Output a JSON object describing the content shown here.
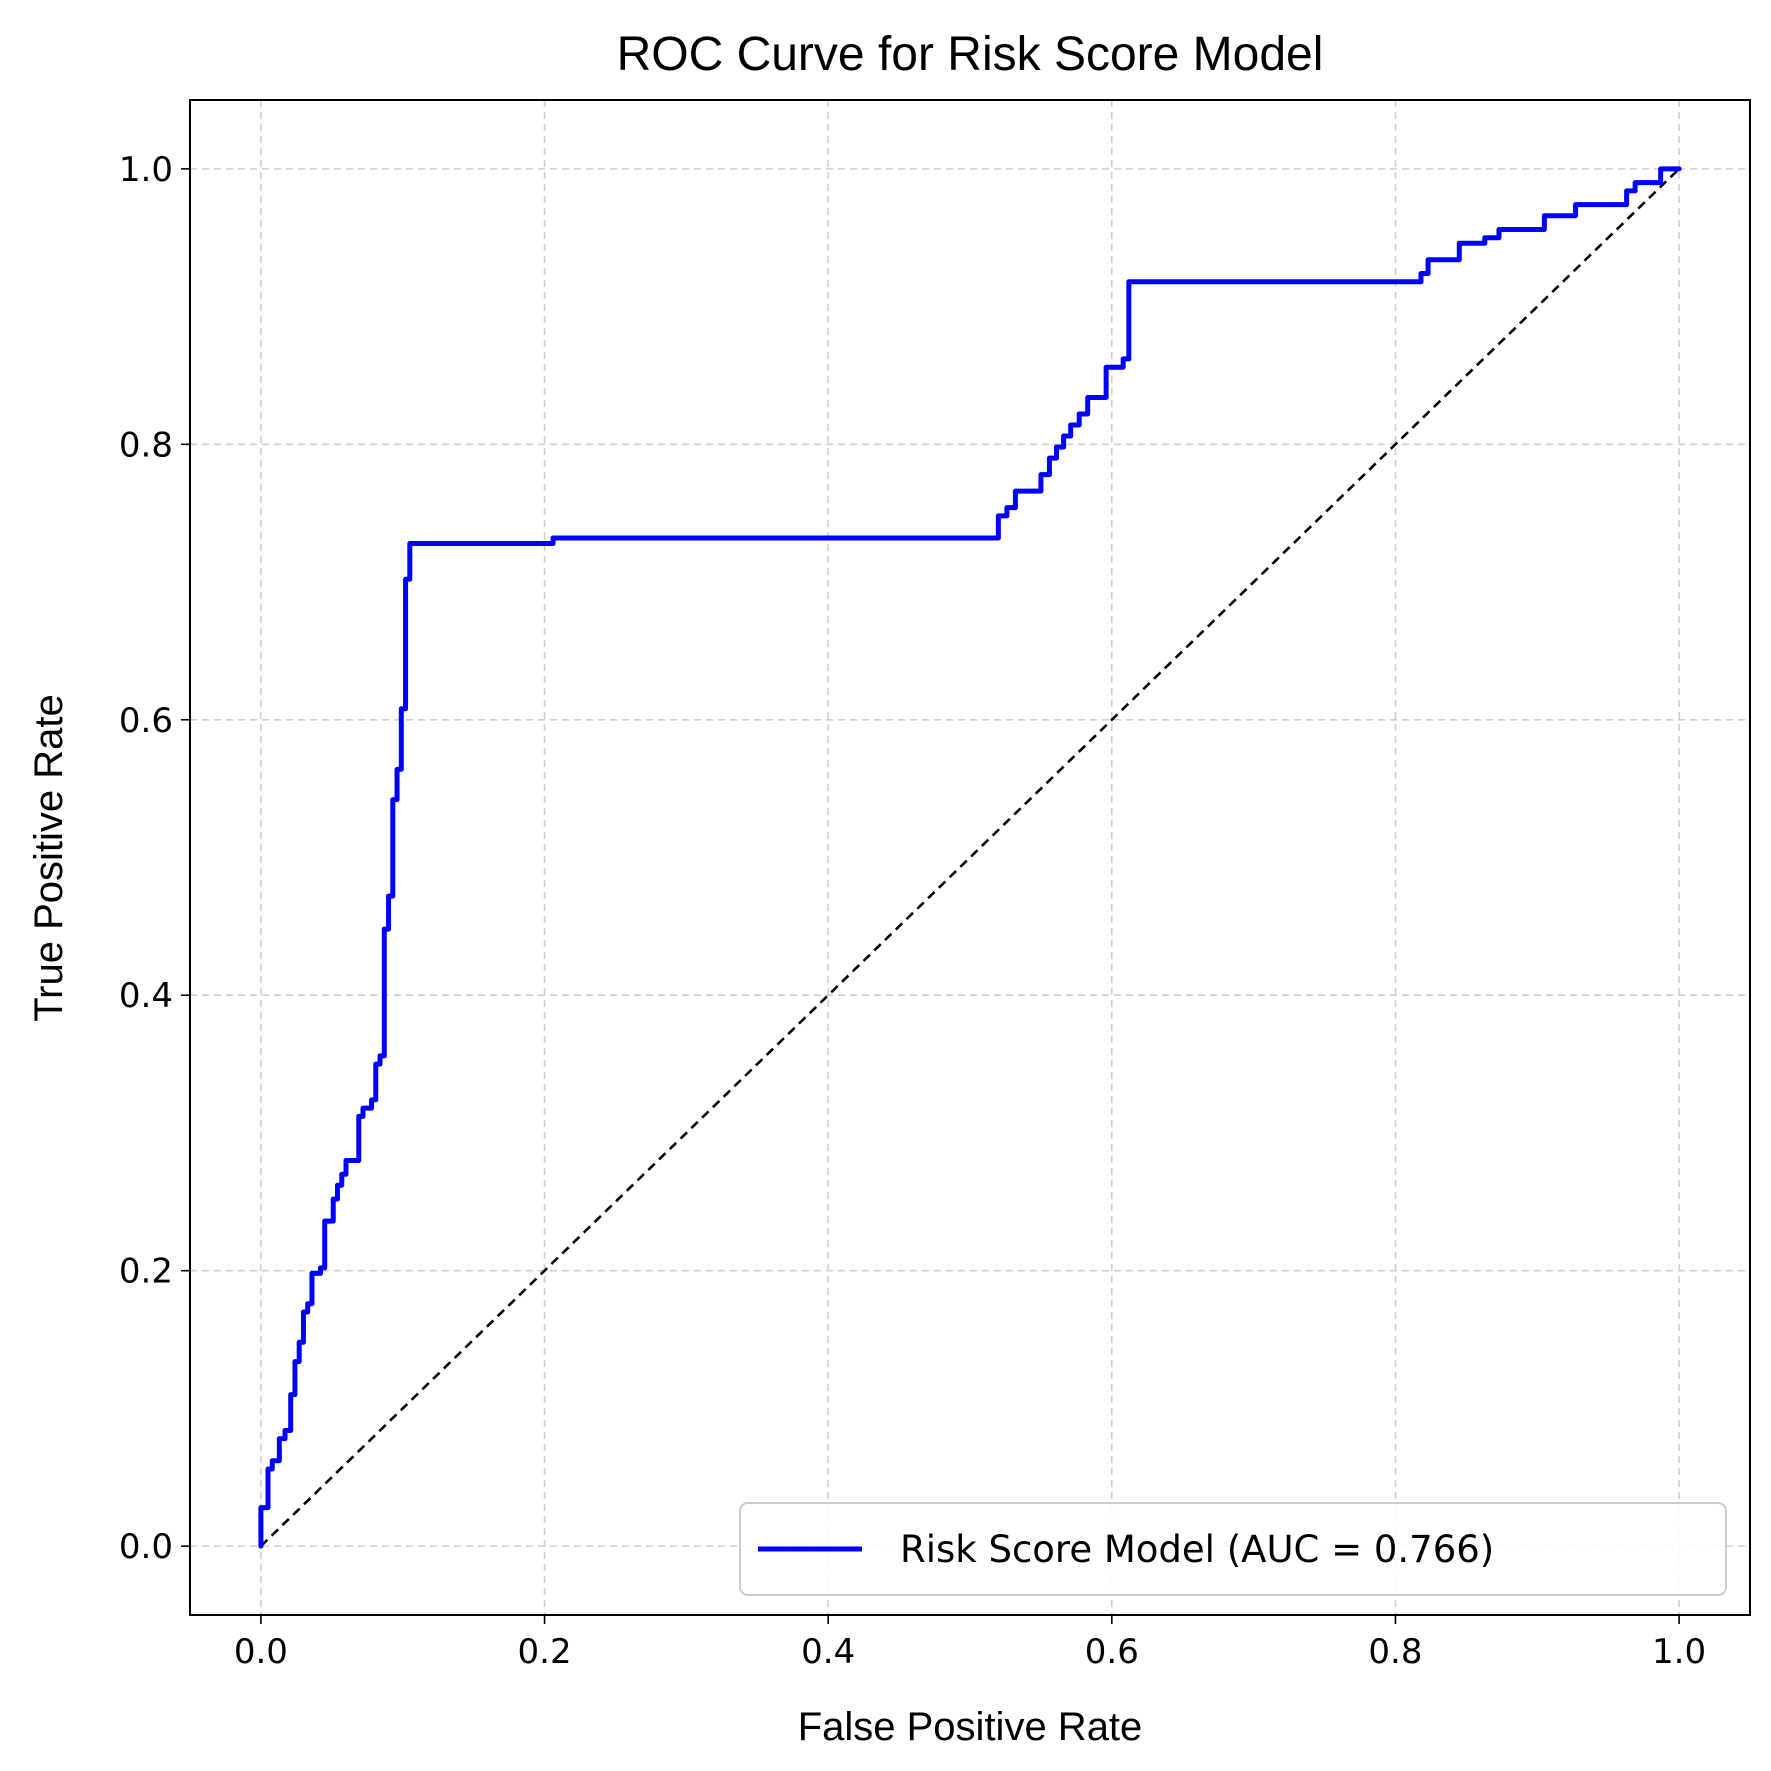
{
  "chart_data": {
    "type": "line",
    "title": "ROC Curve for Risk Score Model",
    "xlabel": "False Positive Rate",
    "ylabel": "True Positive Rate",
    "xlim": [
      -0.05,
      1.05
    ],
    "ylim": [
      -0.05,
      1.05
    ],
    "xticks": [
      "0.0",
      "0.2",
      "0.4",
      "0.6",
      "0.8",
      "1.0"
    ],
    "yticks": [
      "0.0",
      "0.2",
      "0.4",
      "0.6",
      "0.8",
      "1.0"
    ],
    "grid": true,
    "legend_position": "lower-right",
    "colors": {
      "roc": "#0000ff",
      "reference": "#000000"
    },
    "series": [
      {
        "name": "Risk Score Model (AUC = 0.766)",
        "style": "solid",
        "x": [
          0.0,
          0.0,
          0.005,
          0.005,
          0.008,
          0.008,
          0.013,
          0.013,
          0.017,
          0.017,
          0.021,
          0.021,
          0.024,
          0.024,
          0.027,
          0.027,
          0.03,
          0.03,
          0.033,
          0.033,
          0.036,
          0.036,
          0.042,
          0.042,
          0.045,
          0.045,
          0.051,
          0.051,
          0.054,
          0.054,
          0.057,
          0.057,
          0.06,
          0.06,
          0.063,
          0.063,
          0.069,
          0.069,
          0.072,
          0.072,
          0.078,
          0.078,
          0.081,
          0.081,
          0.084,
          0.084,
          0.087,
          0.087,
          0.09,
          0.09,
          0.093,
          0.093,
          0.096,
          0.096,
          0.099,
          0.099,
          0.102,
          0.102,
          0.105,
          0.105,
          0.206,
          0.206,
          0.52,
          0.52,
          0.526,
          0.526,
          0.532,
          0.532,
          0.538,
          0.538,
          0.55,
          0.55,
          0.556,
          0.556,
          0.561,
          0.561,
          0.566,
          0.566,
          0.571,
          0.571,
          0.577,
          0.577,
          0.583,
          0.583,
          0.596,
          0.596,
          0.608,
          0.608,
          0.612,
          0.612,
          0.62,
          0.62,
          0.818,
          0.818,
          0.823,
          0.823,
          0.827,
          0.827,
          0.845,
          0.845,
          0.863,
          0.863,
          0.873,
          0.873,
          0.905,
          0.905,
          0.927,
          0.927,
          0.963,
          0.963,
          0.969,
          0.969,
          0.987,
          0.987,
          1.0
        ],
        "y": [
          0.0,
          0.028,
          0.028,
          0.056,
          0.056,
          0.062,
          0.062,
          0.078,
          0.078,
          0.084,
          0.084,
          0.11,
          0.11,
          0.134,
          0.134,
          0.148,
          0.148,
          0.17,
          0.17,
          0.176,
          0.176,
          0.198,
          0.198,
          0.202,
          0.202,
          0.236,
          0.236,
          0.252,
          0.252,
          0.262,
          0.262,
          0.27,
          0.27,
          0.28,
          0.28,
          0.28,
          0.28,
          0.312,
          0.312,
          0.318,
          0.318,
          0.324,
          0.324,
          0.35,
          0.35,
          0.356,
          0.356,
          0.448,
          0.448,
          0.472,
          0.472,
          0.542,
          0.542,
          0.564,
          0.564,
          0.608,
          0.608,
          0.702,
          0.702,
          0.728,
          0.728,
          0.732,
          0.732,
          0.748,
          0.748,
          0.754,
          0.754,
          0.766,
          0.766,
          0.766,
          0.766,
          0.778,
          0.778,
          0.79,
          0.79,
          0.798,
          0.798,
          0.806,
          0.806,
          0.814,
          0.814,
          0.822,
          0.822,
          0.834,
          0.834,
          0.856,
          0.856,
          0.862,
          0.862,
          0.918,
          0.918,
          0.918,
          0.918,
          0.924,
          0.924,
          0.934,
          0.934,
          0.934,
          0.934,
          0.946,
          0.946,
          0.95,
          0.95,
          0.956,
          0.956,
          0.966,
          0.966,
          0.974,
          0.974,
          0.984,
          0.984,
          0.99,
          0.99,
          1.0,
          1.0
        ]
      },
      {
        "style": "dashed",
        "x": [
          0.0,
          1.0
        ],
        "y": [
          0.0,
          1.0
        ]
      }
    ]
  }
}
